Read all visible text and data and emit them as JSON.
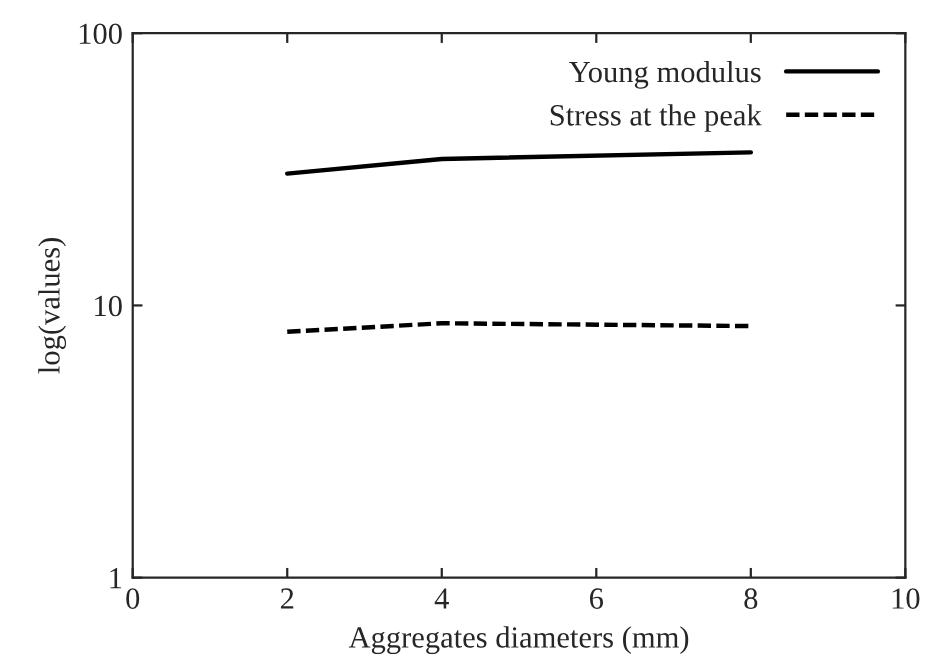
{
  "chart_data": {
    "type": "line",
    "xlabel": "Aggregates diameters (mm)",
    "ylabel": "log(values)",
    "x": [
      2,
      4,
      8
    ],
    "series": [
      {
        "name": "Young modulus",
        "color": "#000000",
        "values": [
          30.5,
          34.5,
          36.5
        ],
        "line_style": "solid"
      },
      {
        "name": "Stress at the peak",
        "color": "#000000",
        "values": [
          8.0,
          8.6,
          8.4
        ],
        "line_style": "dashed"
      }
    ],
    "log": "y",
    "xlim": [
      0,
      10
    ],
    "xticks": [
      0,
      2,
      4,
      6,
      8,
      10
    ],
    "ylim": [
      1,
      100
    ],
    "yticks": [
      1,
      10,
      100
    ],
    "legend": "top right",
    "grid": false,
    "marker": "none"
  }
}
